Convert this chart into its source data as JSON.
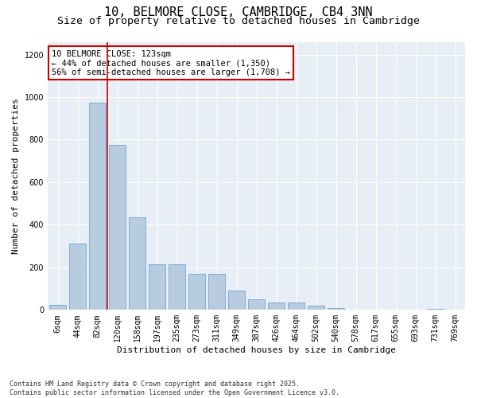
{
  "title_line1": "10, BELMORE CLOSE, CAMBRIDGE, CB4 3NN",
  "title_line2": "Size of property relative to detached houses in Cambridge",
  "xlabel": "Distribution of detached houses by size in Cambridge",
  "ylabel": "Number of detached properties",
  "categories": [
    "6sqm",
    "44sqm",
    "82sqm",
    "120sqm",
    "158sqm",
    "197sqm",
    "235sqm",
    "273sqm",
    "311sqm",
    "349sqm",
    "387sqm",
    "426sqm",
    "464sqm",
    "502sqm",
    "540sqm",
    "578sqm",
    "617sqm",
    "655sqm",
    "693sqm",
    "731sqm",
    "769sqm"
  ],
  "values": [
    25,
    310,
    975,
    775,
    435,
    215,
    215,
    170,
    170,
    90,
    50,
    35,
    35,
    20,
    10,
    0,
    0,
    0,
    0,
    5,
    0
  ],
  "bar_color": "#b8ccdf",
  "bar_edgecolor": "#5b9bd5",
  "vline_x_index": 2,
  "vline_color": "#cc0000",
  "annotation_text": "10 BELMORE CLOSE: 123sqm\n← 44% of detached houses are smaller (1,350)\n56% of semi-detached houses are larger (1,708) →",
  "annotation_box_edgecolor": "#cc0000",
  "annotation_box_facecolor": "white",
  "ylim": [
    0,
    1260
  ],
  "yticks": [
    0,
    200,
    400,
    600,
    800,
    1000,
    1200
  ],
  "bg_color": "#e8eef5",
  "footer_line1": "Contains HM Land Registry data © Crown copyright and database right 2025.",
  "footer_line2": "Contains public sector information licensed under the Open Government Licence v3.0.",
  "title_fontsize": 11,
  "subtitle_fontsize": 9.5,
  "axis_fontsize": 8,
  "tick_fontsize": 7,
  "annotation_fontsize": 7.5,
  "footer_fontsize": 6
}
